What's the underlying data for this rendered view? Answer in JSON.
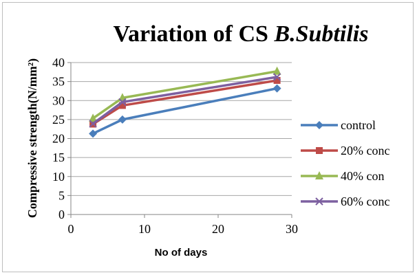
{
  "chart_data": {
    "type": "line",
    "title_main": "Variation of CS ",
    "title_italic": "B.Subtilis",
    "xlabel": "No of days",
    "ylabel": "Compressive strength(N/mm²)",
    "xlim": [
      0,
      30
    ],
    "ylim": [
      0,
      40
    ],
    "x_ticks": [
      0,
      10,
      20,
      30
    ],
    "y_ticks": [
      0,
      5,
      10,
      15,
      20,
      25,
      30,
      35,
      40
    ],
    "grid": true,
    "legend_position": "right",
    "x": [
      3,
      7,
      28
    ],
    "series": [
      {
        "name": "control",
        "values": [
          21.3,
          25.0,
          33.2
        ],
        "color": "#4a7ebb",
        "marker": "diamond"
      },
      {
        "name": "20% conc",
        "values": [
          23.8,
          28.7,
          35.3
        ],
        "color": "#be4b48",
        "marker": "square"
      },
      {
        "name": "40% con",
        "values": [
          25.3,
          30.7,
          37.7
        ],
        "color": "#98b954",
        "marker": "triangle"
      },
      {
        "name": "60% conc",
        "values": [
          23.9,
          29.6,
          36.2
        ],
        "color": "#7d60a0",
        "marker": "x"
      }
    ]
  }
}
